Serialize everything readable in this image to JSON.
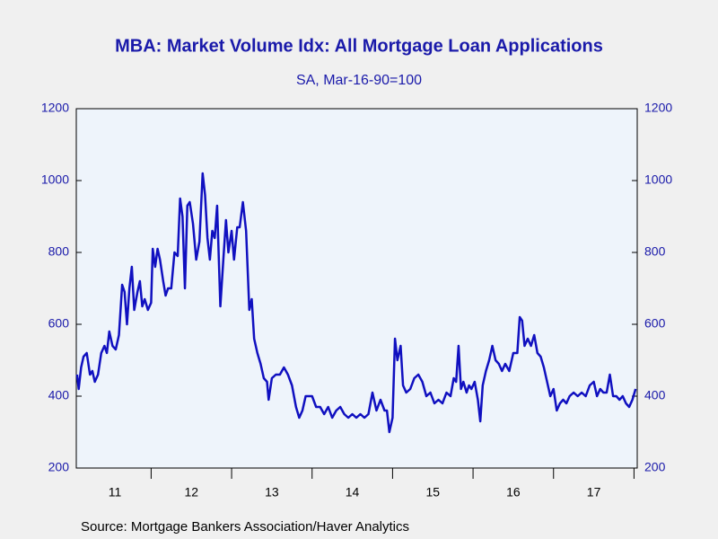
{
  "chart_data": {
    "type": "line",
    "title": "MBA: Market Volume Idx: All Mortgage Loan Applications",
    "subtitle": "SA, Mar-16-90=100",
    "source": "Source:  Mortgage Bankers Association/Haver Analytics",
    "x": [
      11.08,
      11.1,
      11.13,
      11.16,
      11.2,
      11.24,
      11.27,
      11.3,
      11.34,
      11.38,
      11.42,
      11.45,
      11.48,
      11.52,
      11.56,
      11.6,
      11.64,
      11.67,
      11.7,
      11.73,
      11.76,
      11.79,
      11.83,
      11.86,
      11.89,
      11.92,
      11.96,
      12.0,
      12.02,
      12.05,
      12.08,
      12.11,
      12.15,
      12.18,
      12.21,
      12.25,
      12.29,
      12.33,
      12.36,
      12.39,
      12.42,
      12.45,
      12.48,
      12.52,
      12.56,
      12.6,
      12.64,
      12.67,
      12.7,
      12.73,
      12.76,
      12.79,
      12.82,
      12.86,
      12.9,
      12.93,
      12.96,
      13.0,
      13.03,
      13.07,
      13.1,
      13.14,
      13.18,
      13.22,
      13.25,
      13.28,
      13.32,
      13.36,
      13.4,
      13.44,
      13.46,
      13.5,
      13.55,
      13.6,
      13.65,
      13.7,
      13.75,
      13.8,
      13.84,
      13.88,
      13.92,
      13.96,
      14.0,
      14.05,
      14.1,
      14.15,
      14.2,
      14.25,
      14.3,
      14.35,
      14.4,
      14.45,
      14.5,
      14.55,
      14.6,
      14.65,
      14.7,
      14.75,
      14.8,
      14.85,
      14.9,
      14.93,
      14.96,
      15.0,
      15.03,
      15.06,
      15.1,
      15.13,
      15.17,
      15.22,
      15.27,
      15.32,
      15.37,
      15.42,
      15.47,
      15.52,
      15.57,
      15.62,
      15.67,
      15.72,
      15.76,
      15.79,
      15.82,
      15.85,
      15.88,
      15.92,
      15.95,
      15.98,
      16.02,
      16.06,
      16.09,
      16.12,
      16.16,
      16.2,
      16.24,
      16.28,
      16.32,
      16.36,
      16.4,
      16.45,
      16.5,
      16.55,
      16.58,
      16.61,
      16.64,
      16.68,
      16.72,
      16.76,
      16.8,
      16.84,
      16.88,
      16.92,
      16.96,
      17.0,
      17.04,
      17.08,
      17.12,
      17.16,
      17.2,
      17.25,
      17.3,
      17.35,
      17.4,
      17.45,
      17.5,
      17.54,
      17.58,
      17.62,
      17.66,
      17.7,
      17.74,
      17.78,
      17.82,
      17.86,
      17.9,
      17.94,
      17.98,
      18.02
    ],
    "series": [
      {
        "name": "MBA Market Volume Index",
        "color": "#1010c0",
        "values": [
          460,
          420,
          480,
          510,
          520,
          460,
          470,
          440,
          460,
          520,
          540,
          520,
          580,
          540,
          530,
          570,
          710,
          690,
          600,
          700,
          760,
          640,
          690,
          720,
          650,
          670,
          640,
          660,
          810,
          760,
          810,
          780,
          720,
          680,
          700,
          700,
          800,
          790,
          950,
          900,
          700,
          930,
          940,
          880,
          780,
          830,
          1020,
          960,
          840,
          780,
          860,
          840,
          930,
          650,
          790,
          890,
          800,
          860,
          780,
          870,
          870,
          940,
          860,
          640,
          670,
          560,
          520,
          490,
          450,
          440,
          390,
          450,
          460,
          460,
          480,
          460,
          430,
          370,
          340,
          360,
          400,
          400,
          400,
          370,
          370,
          350,
          370,
          340,
          360,
          370,
          350,
          340,
          350,
          340,
          350,
          340,
          350,
          410,
          360,
          390,
          360,
          360,
          300,
          340,
          560,
          500,
          540,
          430,
          410,
          420,
          450,
          460,
          440,
          400,
          410,
          380,
          390,
          380,
          410,
          400,
          450,
          440,
          540,
          420,
          440,
          410,
          430,
          420,
          440,
          390,
          330,
          430,
          470,
          500,
          540,
          500,
          490,
          470,
          490,
          470,
          520,
          520,
          620,
          610,
          540,
          560,
          540,
          570,
          520,
          510,
          480,
          440,
          400,
          420,
          360,
          380,
          390,
          380,
          400,
          410,
          400,
          410,
          400,
          430,
          440,
          400,
          420,
          410,
          410,
          460,
          400,
          400,
          390,
          400,
          380,
          370,
          390,
          420
        ]
      }
    ],
    "xlim": [
      11.07,
      18.04
    ],
    "xticks": [
      {
        "value": 11.55,
        "label": "11"
      },
      {
        "value": 12.5,
        "label": "12"
      },
      {
        "value": 13.5,
        "label": "13"
      },
      {
        "value": 14.5,
        "label": "14"
      },
      {
        "value": 15.5,
        "label": "15"
      },
      {
        "value": 16.5,
        "label": "16"
      },
      {
        "value": 17.5,
        "label": "17"
      }
    ],
    "ylim": [
      200,
      1200
    ],
    "yticks": [
      200,
      400,
      600,
      800,
      1000,
      1200
    ],
    "grid": false
  }
}
